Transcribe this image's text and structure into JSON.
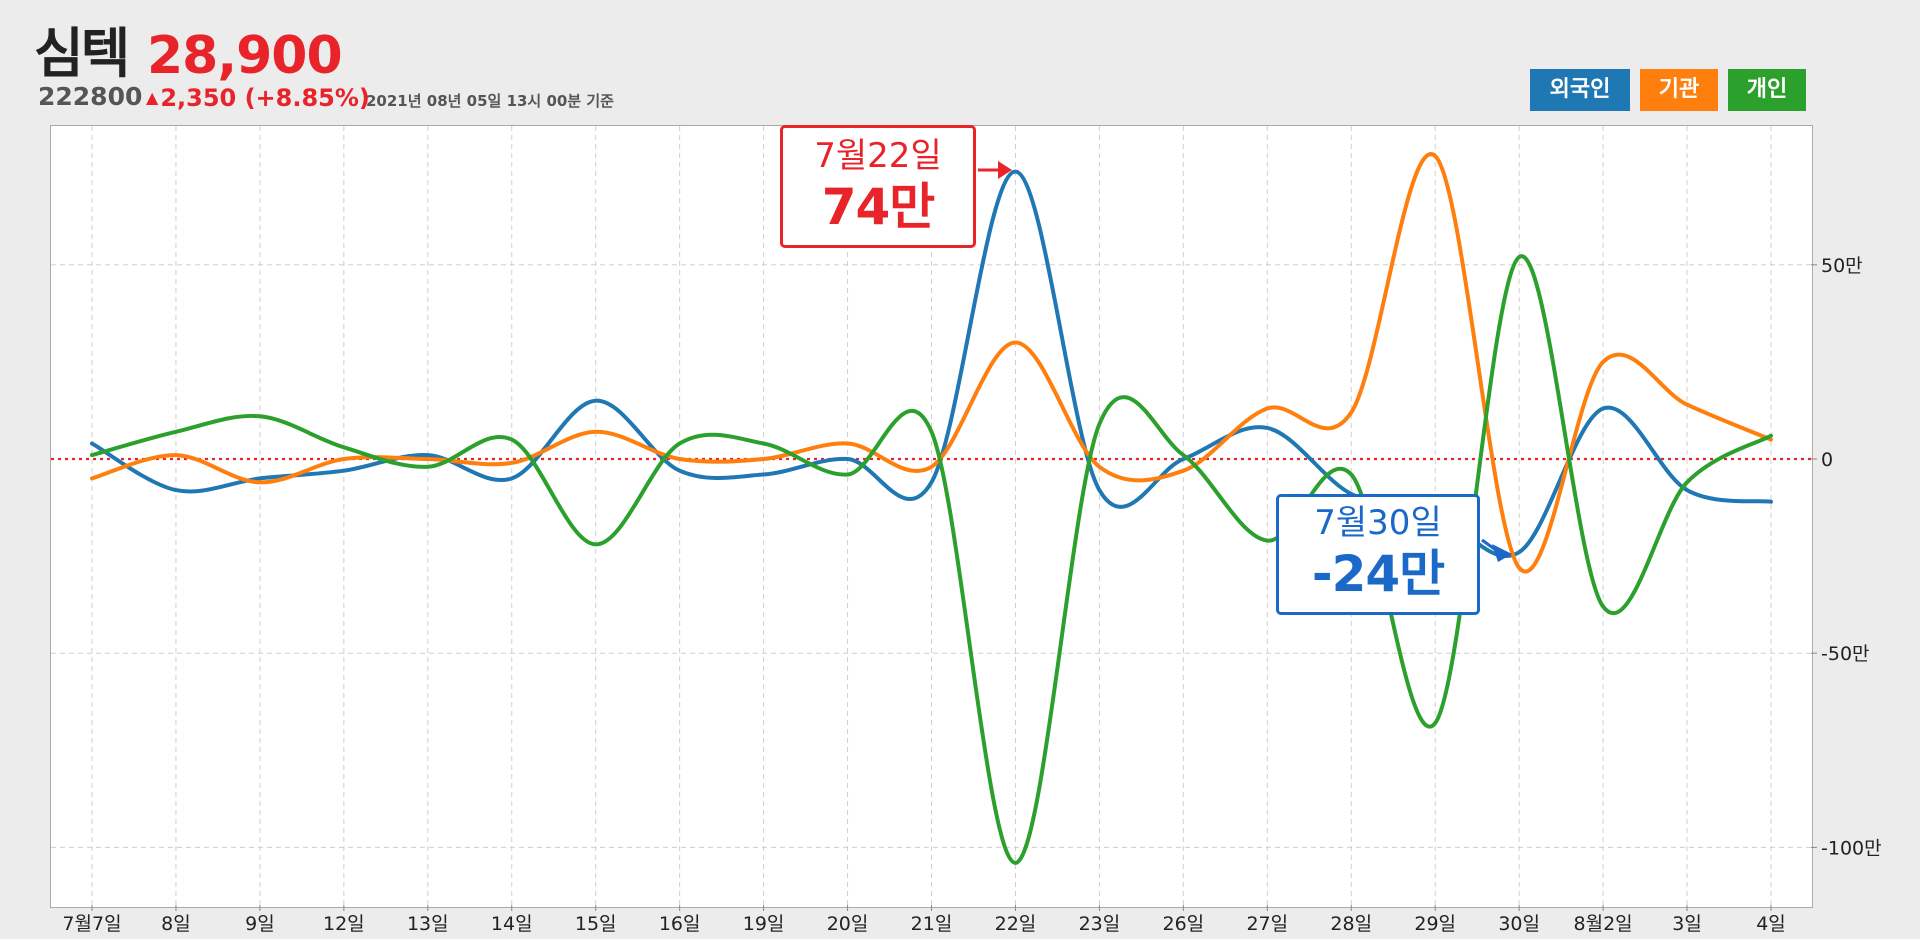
{
  "stock": {
    "name": "심텍",
    "price": "28,900",
    "code": "222800",
    "change_arrow": "▲",
    "change": "2,350 (+8.85%)",
    "basis": "2021년 08년 05일 13시 00분 기준"
  },
  "legend": [
    {
      "label": "외국인",
      "color": "#1f77b4"
    },
    {
      "label": "기관",
      "color": "#ff7f0e"
    },
    {
      "label": "개인",
      "color": "#2ca02c"
    }
  ],
  "callouts": {
    "high": {
      "date": "7월22일",
      "value": "74만"
    },
    "low": {
      "date": "7월30일",
      "value": "-24만"
    }
  },
  "chart_data": {
    "type": "line",
    "categories": [
      "7월7일",
      "8일",
      "9일",
      "12일",
      "13일",
      "14일",
      "15일",
      "16일",
      "19일",
      "20일",
      "21일",
      "22일",
      "23일",
      "26일",
      "27일",
      "28일",
      "29일",
      "30일",
      "8월2일",
      "3일",
      "4일"
    ],
    "series": [
      {
        "name": "외국인",
        "color": "#1f77b4",
        "values": [
          4,
          -8,
          -5,
          -3,
          1,
          -5,
          15,
          -3,
          -4,
          0,
          -6,
          74,
          -8,
          0,
          8,
          -9,
          -14,
          -24,
          13,
          -8,
          -11
        ]
      },
      {
        "name": "기관",
        "color": "#ff7f0e",
        "values": [
          -5,
          1,
          -6,
          0,
          0,
          -1,
          7,
          0,
          0,
          4,
          -2,
          30,
          -2,
          -3,
          13,
          12,
          78,
          -28,
          25,
          14,
          5
        ]
      },
      {
        "name": "개인",
        "color": "#2ca02c",
        "values": [
          1,
          7,
          11,
          3,
          -2,
          5,
          -22,
          4,
          4,
          -4,
          7,
          -104,
          9,
          1,
          -21,
          -4,
          -68,
          52,
          -38,
          -6,
          6
        ]
      }
    ],
    "y_ticks": [
      50,
      0,
      -50,
      -100
    ],
    "y_tick_labels": [
      "50만",
      "0",
      "-50만",
      "-100만"
    ],
    "ylim": [
      -112,
      82
    ],
    "grid": true,
    "zero_line": {
      "value": 0,
      "color": "#e8232a",
      "style": "dotted"
    },
    "legend_position": "top-right"
  }
}
